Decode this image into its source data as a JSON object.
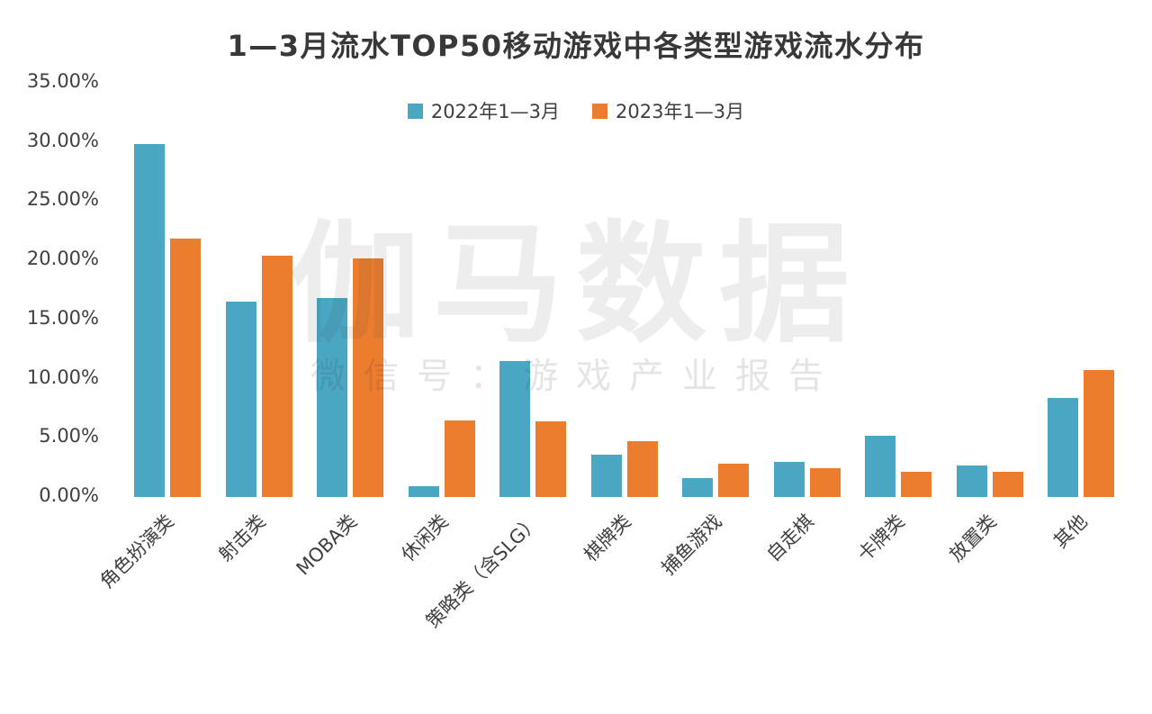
{
  "title": "1—3月流水TOP50移动游戏中各类型游戏流水分布",
  "watermark": {
    "brand": "伽马数据",
    "subtitle": "微信号：游戏产业报告"
  },
  "colors": {
    "series_2022": "#4AA7C3",
    "series_2023": "#EC7D2F",
    "title_text": "#383838",
    "axis_text": "#404040",
    "background": "#FFFFFF"
  },
  "chart_data": {
    "type": "bar",
    "title": "1—3月流水TOP50移动游戏中各类型游戏流水分布",
    "xlabel": "",
    "ylabel": "",
    "ylim": [
      0,
      35
    ],
    "grid": false,
    "legend_position": "top",
    "value_unit": "%",
    "categories": [
      "角色扮演类",
      "射击类",
      "MOBA类",
      "休闲类",
      "策略类（含SLG）",
      "棋牌类",
      "捕鱼游戏",
      "自走棋",
      "卡牌类",
      "放置类",
      "其他"
    ],
    "series": [
      {
        "name": "2022年1—3月",
        "color": "#4AA7C3",
        "values": [
          29.8,
          16.5,
          16.8,
          0.9,
          11.5,
          3.6,
          1.6,
          3.0,
          5.2,
          2.7,
          8.4
        ]
      },
      {
        "name": "2023年1—3月",
        "color": "#EC7D2F",
        "values": [
          21.8,
          20.4,
          20.2,
          6.5,
          6.4,
          4.7,
          2.8,
          2.4,
          2.1,
          2.1,
          10.7
        ]
      }
    ],
    "yticks": [
      {
        "value": 35,
        "label": "35.00%"
      },
      {
        "value": 30,
        "label": "30.00%"
      },
      {
        "value": 25,
        "label": "25.00%"
      },
      {
        "value": 20,
        "label": "20.00%"
      },
      {
        "value": 15,
        "label": "15.00%"
      },
      {
        "value": 10,
        "label": "10.00%"
      },
      {
        "value": 5,
        "label": "5.00%"
      },
      {
        "value": 0,
        "label": "0.00%"
      }
    ]
  }
}
